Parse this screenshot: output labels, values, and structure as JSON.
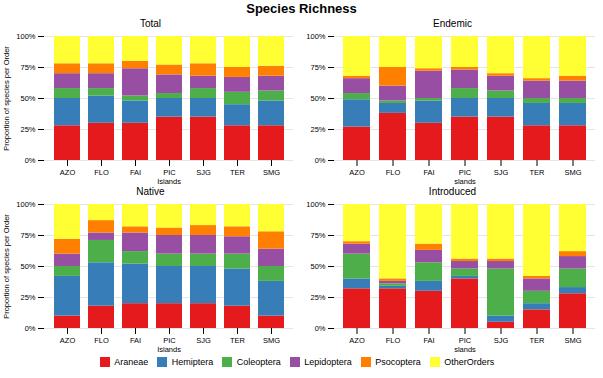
{
  "title": "Species Richness",
  "legend": "bottom",
  "chart_data": [
    {
      "type": "bar",
      "stacked": true,
      "title": "Total",
      "categories": [
        "AZO",
        "FLO",
        "FAI",
        "PIC",
        "SJG",
        "TER",
        "SMG"
      ],
      "xlabel": "Islands",
      "ylabel": "Proportion of species per Order",
      "ylim": [
        0,
        1.0
      ],
      "yticks": [
        {
          "value": 0.0,
          "label": "0%"
        },
        {
          "value": 0.25,
          "label": "25%"
        },
        {
          "value": 0.5,
          "label": "50%"
        },
        {
          "value": 0.75,
          "label": "75%"
        },
        {
          "value": 1.0,
          "label": "100%"
        }
      ],
      "grid": true,
      "series": [
        {
          "name": "Araneae",
          "color": "#e41a1c",
          "values": [
            0.28,
            0.3,
            0.3,
            0.35,
            0.35,
            0.28,
            0.28
          ]
        },
        {
          "name": "Hemiptera",
          "color": "#377eb8",
          "values": [
            0.22,
            0.22,
            0.18,
            0.15,
            0.15,
            0.17,
            0.2
          ]
        },
        {
          "name": "Coleoptera",
          "color": "#4daf4a",
          "values": [
            0.08,
            0.06,
            0.04,
            0.04,
            0.08,
            0.1,
            0.08
          ]
        },
        {
          "name": "Lepidoptera",
          "color": "#984ea3",
          "values": [
            0.12,
            0.12,
            0.22,
            0.15,
            0.1,
            0.12,
            0.12
          ]
        },
        {
          "name": "Psocoptera",
          "color": "#ff7f00",
          "values": [
            0.08,
            0.08,
            0.06,
            0.08,
            0.1,
            0.08,
            0.08
          ]
        },
        {
          "name": "OtherOrders",
          "color": "#ffff33",
          "values": [
            0.22,
            0.22,
            0.2,
            0.23,
            0.22,
            0.25,
            0.24
          ]
        }
      ]
    },
    {
      "type": "bar",
      "stacked": true,
      "title": "Endemic",
      "categories": [
        "AZO",
        "FLO",
        "FAI",
        "PIC",
        "SJG",
        "TER",
        "SMG"
      ],
      "xlabel": "slands",
      "ylim": [
        0,
        1.0
      ],
      "yticks": [
        {
          "value": 0.0,
          "label": "0%"
        },
        {
          "value": 0.25,
          "label": "25%"
        },
        {
          "value": 0.5,
          "label": "50%"
        },
        {
          "value": 0.75,
          "label": "75%"
        },
        {
          "value": 1.0,
          "label": "100%"
        }
      ],
      "grid": true,
      "series": [
        {
          "name": "Araneae",
          "color": "#e41a1c",
          "values": [
            0.27,
            0.38,
            0.3,
            0.35,
            0.35,
            0.28,
            0.28
          ]
        },
        {
          "name": "Hemiptera",
          "color": "#377eb8",
          "values": [
            0.22,
            0.08,
            0.18,
            0.15,
            0.15,
            0.18,
            0.18
          ]
        },
        {
          "name": "Coleoptera",
          "color": "#4daf4a",
          "values": [
            0.05,
            0.02,
            0.02,
            0.08,
            0.06,
            0.04,
            0.04
          ]
        },
        {
          "name": "Lepidoptera",
          "color": "#984ea3",
          "values": [
            0.12,
            0.12,
            0.22,
            0.15,
            0.12,
            0.14,
            0.14
          ]
        },
        {
          "name": "Psocoptera",
          "color": "#ff7f00",
          "values": [
            0.02,
            0.15,
            0.02,
            0.02,
            0.02,
            0.02,
            0.04
          ]
        },
        {
          "name": "OtherOrders",
          "color": "#ffff33",
          "values": [
            0.32,
            0.25,
            0.26,
            0.25,
            0.3,
            0.34,
            0.32
          ]
        }
      ]
    },
    {
      "type": "bar",
      "stacked": true,
      "title": "Native",
      "categories": [
        "AZO",
        "FLO",
        "FAI",
        "PIC",
        "SJG",
        "TER",
        "SMG"
      ],
      "xlabel": "Islands",
      "ylabel": "Proportion of species per Order",
      "ylim": [
        0,
        1.0
      ],
      "yticks": [
        {
          "value": 0.0,
          "label": "0%"
        },
        {
          "value": 0.25,
          "label": "25%"
        },
        {
          "value": 0.5,
          "label": "50%"
        },
        {
          "value": 0.75,
          "label": "75%"
        },
        {
          "value": 1.0,
          "label": "100%"
        }
      ],
      "grid": true,
      "series": [
        {
          "name": "Araneae",
          "color": "#e41a1c",
          "values": [
            0.1,
            0.18,
            0.2,
            0.2,
            0.2,
            0.18,
            0.1
          ]
        },
        {
          "name": "Hemiptera",
          "color": "#377eb8",
          "values": [
            0.32,
            0.35,
            0.32,
            0.3,
            0.3,
            0.3,
            0.28
          ]
        },
        {
          "name": "Coleoptera",
          "color": "#4daf4a",
          "values": [
            0.08,
            0.18,
            0.1,
            0.1,
            0.1,
            0.12,
            0.12
          ]
        },
        {
          "name": "Lepidoptera",
          "color": "#984ea3",
          "values": [
            0.1,
            0.06,
            0.15,
            0.15,
            0.15,
            0.14,
            0.14
          ]
        },
        {
          "name": "Psocoptera",
          "color": "#ff7f00",
          "values": [
            0.12,
            0.1,
            0.05,
            0.06,
            0.08,
            0.08,
            0.14
          ]
        },
        {
          "name": "OtherOrders",
          "color": "#ffff33",
          "values": [
            0.28,
            0.13,
            0.18,
            0.19,
            0.17,
            0.18,
            0.22
          ]
        }
      ]
    },
    {
      "type": "bar",
      "stacked": true,
      "title": "Introduced",
      "categories": [
        "AZO",
        "FLO",
        "FAI",
        "PIC",
        "SJG",
        "TER",
        "SMG"
      ],
      "xlabel": "slands",
      "ylim": [
        0,
        1.0
      ],
      "yticks": [
        {
          "value": 0.0,
          "label": "0%"
        },
        {
          "value": 0.25,
          "label": "25%"
        },
        {
          "value": 0.5,
          "label": "50%"
        },
        {
          "value": 0.75,
          "label": "75%"
        },
        {
          "value": 1.0,
          "label": "100%"
        }
      ],
      "grid": true,
      "series": [
        {
          "name": "Araneae",
          "color": "#e41a1c",
          "values": [
            0.32,
            0.32,
            0.3,
            0.4,
            0.05,
            0.15,
            0.28
          ]
        },
        {
          "name": "Hemiptera",
          "color": "#377eb8",
          "values": [
            0.08,
            0.02,
            0.08,
            0.02,
            0.05,
            0.05,
            0.05
          ]
        },
        {
          "name": "Coleoptera",
          "color": "#4daf4a",
          "values": [
            0.2,
            0.02,
            0.15,
            0.06,
            0.38,
            0.1,
            0.15
          ]
        },
        {
          "name": "Lepidoptera",
          "color": "#984ea3",
          "values": [
            0.08,
            0.02,
            0.1,
            0.06,
            0.06,
            0.1,
            0.1
          ]
        },
        {
          "name": "Psocoptera",
          "color": "#ff7f00",
          "values": [
            0.02,
            0.02,
            0.05,
            0.02,
            0.02,
            0.02,
            0.04
          ]
        },
        {
          "name": "OtherOrders",
          "color": "#ffff33",
          "values": [
            0.3,
            0.6,
            0.32,
            0.44,
            0.44,
            0.58,
            0.38
          ]
        }
      ]
    }
  ]
}
